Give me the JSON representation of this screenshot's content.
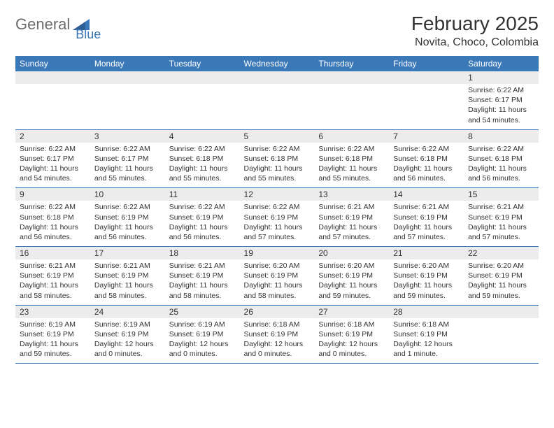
{
  "brand": {
    "part1": "General",
    "part2": "Blue"
  },
  "title": "February 2025",
  "location": "Novita, Choco, Colombia",
  "colors": {
    "accent": "#3b78b8",
    "row_bg": "#ececec",
    "text": "#333333",
    "logo_gray": "#6b6b6b"
  },
  "headers": [
    "Sunday",
    "Monday",
    "Tuesday",
    "Wednesday",
    "Thursday",
    "Friday",
    "Saturday"
  ],
  "weeks": [
    [
      null,
      null,
      null,
      null,
      null,
      null,
      {
        "d": "1",
        "sr": "6:22 AM",
        "ss": "6:17 PM",
        "dl": "11 hours and 54 minutes."
      }
    ],
    [
      {
        "d": "2",
        "sr": "6:22 AM",
        "ss": "6:17 PM",
        "dl": "11 hours and 54 minutes."
      },
      {
        "d": "3",
        "sr": "6:22 AM",
        "ss": "6:17 PM",
        "dl": "11 hours and 55 minutes."
      },
      {
        "d": "4",
        "sr": "6:22 AM",
        "ss": "6:18 PM",
        "dl": "11 hours and 55 minutes."
      },
      {
        "d": "5",
        "sr": "6:22 AM",
        "ss": "6:18 PM",
        "dl": "11 hours and 55 minutes."
      },
      {
        "d": "6",
        "sr": "6:22 AM",
        "ss": "6:18 PM",
        "dl": "11 hours and 55 minutes."
      },
      {
        "d": "7",
        "sr": "6:22 AM",
        "ss": "6:18 PM",
        "dl": "11 hours and 56 minutes."
      },
      {
        "d": "8",
        "sr": "6:22 AM",
        "ss": "6:18 PM",
        "dl": "11 hours and 56 minutes."
      }
    ],
    [
      {
        "d": "9",
        "sr": "6:22 AM",
        "ss": "6:18 PM",
        "dl": "11 hours and 56 minutes."
      },
      {
        "d": "10",
        "sr": "6:22 AM",
        "ss": "6:19 PM",
        "dl": "11 hours and 56 minutes."
      },
      {
        "d": "11",
        "sr": "6:22 AM",
        "ss": "6:19 PM",
        "dl": "11 hours and 56 minutes."
      },
      {
        "d": "12",
        "sr": "6:22 AM",
        "ss": "6:19 PM",
        "dl": "11 hours and 57 minutes."
      },
      {
        "d": "13",
        "sr": "6:21 AM",
        "ss": "6:19 PM",
        "dl": "11 hours and 57 minutes."
      },
      {
        "d": "14",
        "sr": "6:21 AM",
        "ss": "6:19 PM",
        "dl": "11 hours and 57 minutes."
      },
      {
        "d": "15",
        "sr": "6:21 AM",
        "ss": "6:19 PM",
        "dl": "11 hours and 57 minutes."
      }
    ],
    [
      {
        "d": "16",
        "sr": "6:21 AM",
        "ss": "6:19 PM",
        "dl": "11 hours and 58 minutes."
      },
      {
        "d": "17",
        "sr": "6:21 AM",
        "ss": "6:19 PM",
        "dl": "11 hours and 58 minutes."
      },
      {
        "d": "18",
        "sr": "6:21 AM",
        "ss": "6:19 PM",
        "dl": "11 hours and 58 minutes."
      },
      {
        "d": "19",
        "sr": "6:20 AM",
        "ss": "6:19 PM",
        "dl": "11 hours and 58 minutes."
      },
      {
        "d": "20",
        "sr": "6:20 AM",
        "ss": "6:19 PM",
        "dl": "11 hours and 59 minutes."
      },
      {
        "d": "21",
        "sr": "6:20 AM",
        "ss": "6:19 PM",
        "dl": "11 hours and 59 minutes."
      },
      {
        "d": "22",
        "sr": "6:20 AM",
        "ss": "6:19 PM",
        "dl": "11 hours and 59 minutes."
      }
    ],
    [
      {
        "d": "23",
        "sr": "6:19 AM",
        "ss": "6:19 PM",
        "dl": "11 hours and 59 minutes."
      },
      {
        "d": "24",
        "sr": "6:19 AM",
        "ss": "6:19 PM",
        "dl": "12 hours and 0 minutes."
      },
      {
        "d": "25",
        "sr": "6:19 AM",
        "ss": "6:19 PM",
        "dl": "12 hours and 0 minutes."
      },
      {
        "d": "26",
        "sr": "6:18 AM",
        "ss": "6:19 PM",
        "dl": "12 hours and 0 minutes."
      },
      {
        "d": "27",
        "sr": "6:18 AM",
        "ss": "6:19 PM",
        "dl": "12 hours and 0 minutes."
      },
      {
        "d": "28",
        "sr": "6:18 AM",
        "ss": "6:19 PM",
        "dl": "12 hours and 1 minute."
      },
      null
    ]
  ],
  "labels": {
    "sunrise": "Sunrise:",
    "sunset": "Sunset:",
    "daylight": "Daylight:"
  }
}
